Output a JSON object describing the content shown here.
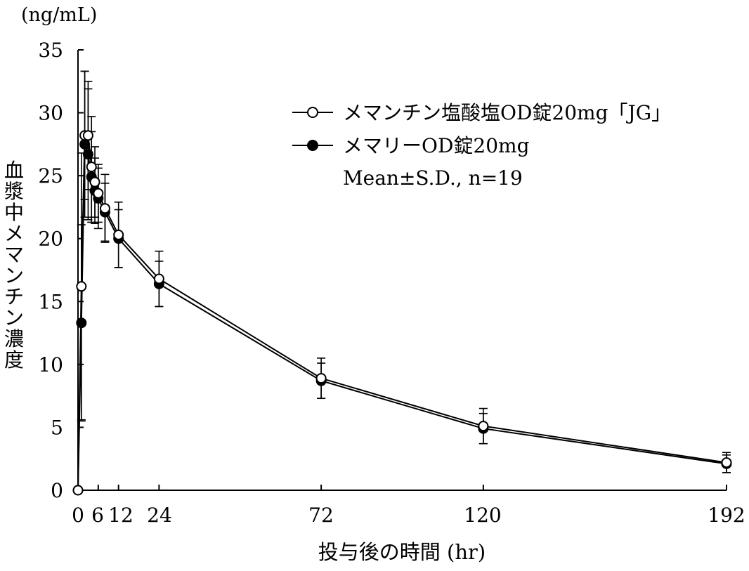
{
  "chart_data": {
    "type": "line",
    "unit_label": "(ng/mL)",
    "ylabel": "血漿中メマンチン濃度",
    "xlabel": "投与後の時間 (hr)",
    "xlim": [
      0,
      192
    ],
    "ylim": [
      0,
      35
    ],
    "x_ticks": [
      0,
      6,
      12,
      24,
      72,
      120,
      192
    ],
    "x_tick_labels": [
      "0",
      "6",
      "12",
      "24",
      "72",
      "120",
      "192"
    ],
    "y_ticks": [
      0,
      5,
      10,
      15,
      20,
      25,
      30,
      35
    ],
    "y_tick_labels": [
      "0",
      "5",
      "10",
      "15",
      "20",
      "25",
      "30",
      "35"
    ],
    "grid": false,
    "legend_position": "top-right",
    "legend_note": "Mean±S.D., n=19",
    "series": [
      {
        "name": "メマンチン塩酸塩OD錠20mg「JG」",
        "marker": "open-circle",
        "x": [
          0,
          1,
          2,
          3,
          4,
          5,
          6,
          8,
          12,
          24,
          72,
          120,
          192
        ],
        "y": [
          0,
          16.2,
          28.2,
          28.2,
          25.7,
          24.5,
          23.6,
          22.4,
          20.3,
          16.8,
          8.9,
          5.1,
          2.2
        ],
        "sd": [
          0,
          10.6,
          5.1,
          4.3,
          4.0,
          2.8,
          2.3,
          2.7,
          2.6,
          2.2,
          1.6,
          1.4,
          0.8
        ]
      },
      {
        "name": "メマリーOD錠20mg",
        "marker": "filled-circle",
        "x": [
          0,
          1,
          2,
          3,
          4,
          5,
          6,
          8,
          12,
          24,
          72,
          120,
          192
        ],
        "y": [
          0,
          13.3,
          27.5,
          26.7,
          24.9,
          23.8,
          23.2,
          22.1,
          20.0,
          16.4,
          8.7,
          4.9,
          2.1
        ],
        "sd": [
          0,
          7.8,
          5.8,
          5.2,
          3.6,
          2.6,
          2.4,
          2.3,
          2.3,
          1.8,
          1.4,
          1.2,
          0.7
        ]
      }
    ]
  }
}
